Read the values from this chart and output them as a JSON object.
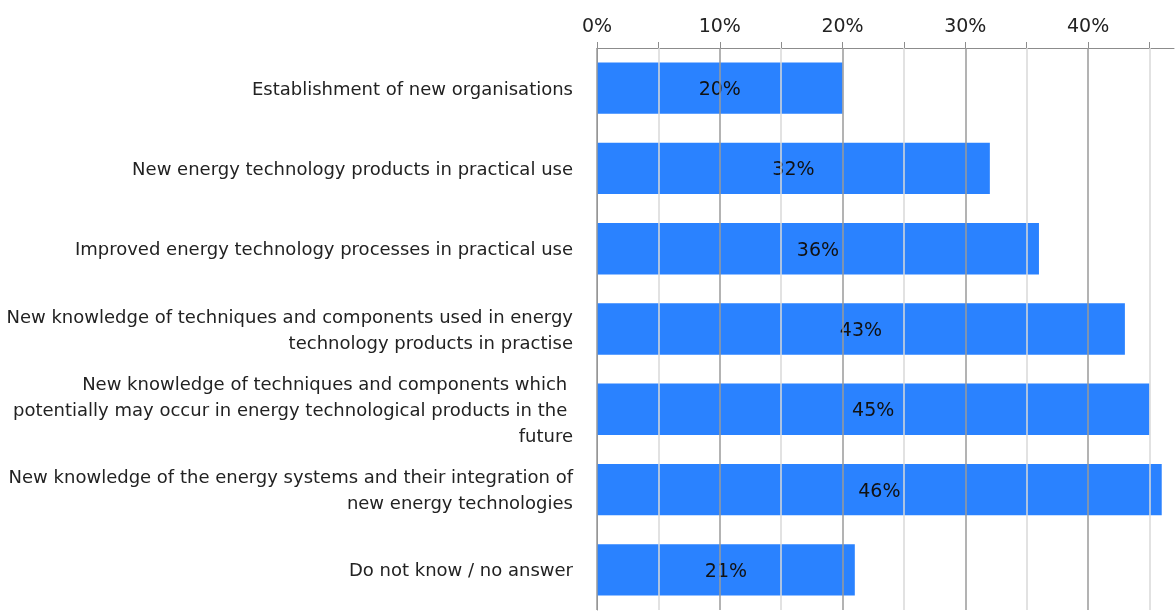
{
  "chart_data": {
    "type": "bar",
    "orientation": "horizontal",
    "categories": [
      "Establishment of new organisations",
      "New energy technology products in practical use",
      "Improved energy technology processes in practical use",
      "New knowledge of techniques and components used in energy technology products in practise",
      "New knowledge of techniques and components which potentially may occur in energy technological products in the future",
      "New knowledge of the energy systems and their integration of new energy technologies",
      "Do not know / no answer"
    ],
    "values": [
      20,
      32,
      36,
      43,
      45,
      46,
      21
    ],
    "value_labels": [
      "20%",
      "32%",
      "36%",
      "43%",
      "45%",
      "46%",
      "21%"
    ],
    "color": "#2a82ff",
    "xlim": [
      0,
      47
    ],
    "xticks": [
      {
        "value": 0,
        "label": "0%"
      },
      {
        "value": 5,
        "label": null
      },
      {
        "value": 10,
        "label": "10%"
      },
      {
        "value": 15,
        "label": null
      },
      {
        "value": 20,
        "label": "20%"
      },
      {
        "value": 25,
        "label": null
      },
      {
        "value": 30,
        "label": "30%"
      },
      {
        "value": 35,
        "label": null
      },
      {
        "value": 40,
        "label": "40%"
      },
      {
        "value": 45,
        "label": null
      }
    ],
    "grid": "x"
  }
}
